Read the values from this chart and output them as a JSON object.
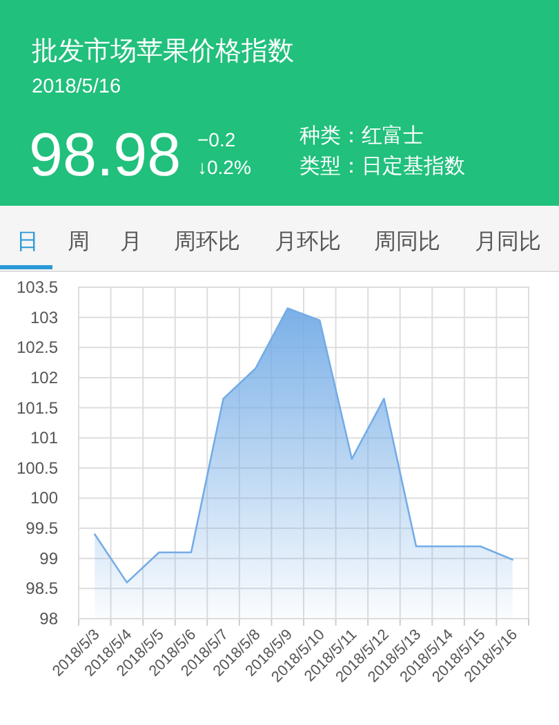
{
  "chart_data": {
    "type": "area",
    "title": "批发市场苹果价格指数",
    "subtitle": "2018/5/16",
    "annotations": [
      "98.98",
      "−0.2",
      "↓0.2%",
      "种类：红富士",
      "类型：日定基指数",
      "日",
      "周",
      "月",
      "周环比",
      "月环比",
      "周同比",
      "月同比"
    ],
    "categories": [
      "2018/5/3",
      "2018/5/4",
      "2018/5/5",
      "2018/5/6",
      "2018/5/7",
      "2018/5/8",
      "2018/5/9",
      "2018/5/10",
      "2018/5/11",
      "2018/5/12",
      "2018/5/13",
      "2018/5/14",
      "2018/5/15",
      "2018/5/16"
    ],
    "series": [
      {
        "color": "#74ace6",
        "values": [
          99.4,
          98.6,
          99.1,
          99.1,
          101.65,
          102.15,
          103.15,
          102.95,
          100.65,
          101.65,
          99.2,
          99.2,
          99.2,
          98.98
        ]
      }
    ],
    "ylim": [
      98,
      103.5
    ],
    "yticks": [
      98,
      98.5,
      99,
      99.5,
      100,
      100.5,
      101,
      101.5,
      102,
      102.5,
      103,
      103.5
    ],
    "grid": true
  }
}
